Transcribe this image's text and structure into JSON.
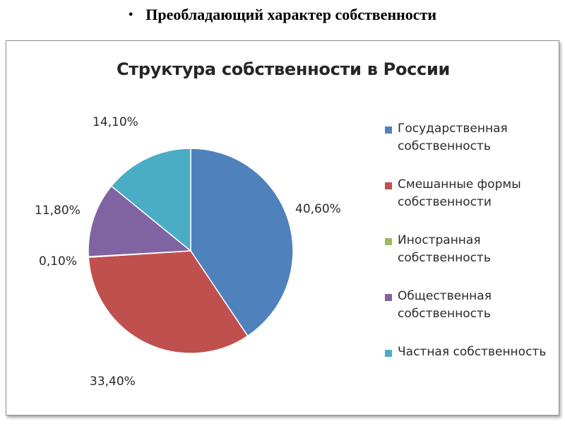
{
  "slide": {
    "bullet": "•",
    "heading": "Преобладающий характер собственности"
  },
  "chart_data": {
    "type": "pie",
    "title": "Структура собственности в России",
    "legend_position": "right",
    "categories": [
      "Государственная собственность",
      "Смешанные формы собственности",
      "Иностранная собственность",
      "Общественная собственность",
      "Частная собственность"
    ],
    "values": [
      40.6,
      33.4,
      0.1,
      11.8,
      14.1
    ],
    "labels": [
      "40,60%",
      "33,40%",
      "0,10%",
      "11,80%",
      "14,10%"
    ],
    "legend_lines": [
      [
        "Государственная",
        "собственность"
      ],
      [
        "Смешанные формы",
        "собственности"
      ],
      [
        "Иностранная",
        "собственность"
      ],
      [
        "Общественная",
        "собственность"
      ],
      [
        "Частная собственность"
      ]
    ],
    "colors": [
      "#4f81bd",
      "#c0504d",
      "#9bbb59",
      "#8064a2",
      "#4bacc6"
    ]
  }
}
